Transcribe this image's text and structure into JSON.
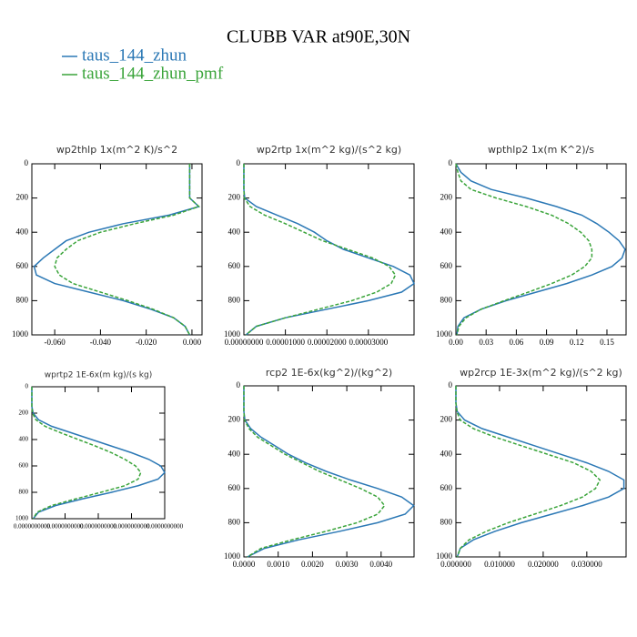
{
  "title": "CLUBB VAR at90E,30N",
  "chart_data": [
    {
      "type": "line",
      "title": "wp2thlp  1x(m^2 K)/s^2",
      "y": [
        0,
        50,
        100,
        150,
        200,
        250,
        300,
        350,
        400,
        450,
        500,
        550,
        600,
        650,
        700,
        750,
        800,
        850,
        900,
        950,
        1000
      ],
      "series": [
        {
          "name": "taus_144_zhun",
          "color": "#2b78b5",
          "linestyle": "solid",
          "values": [
            -0.001,
            -0.001,
            -0.001,
            -0.001,
            -0.001,
            0.003,
            -0.01,
            -0.03,
            -0.045,
            -0.055,
            -0.06,
            -0.065,
            -0.069,
            -0.068,
            -0.06,
            -0.045,
            -0.03,
            -0.018,
            -0.008,
            -0.003,
            -0.001
          ]
        },
        {
          "name": "taus_144_zhun_pmf",
          "color": "#3aa43a",
          "linestyle": "dashed",
          "values": [
            -0.001,
            -0.001,
            -0.001,
            -0.001,
            -0.001,
            0.003,
            -0.008,
            -0.025,
            -0.04,
            -0.05,
            -0.055,
            -0.059,
            -0.06,
            -0.058,
            -0.052,
            -0.04,
            -0.028,
            -0.017,
            -0.008,
            -0.003,
            -0.001
          ]
        }
      ],
      "xlim": [
        -0.07,
        0.0044
      ],
      "xticks": [
        {
          "value": -0.06,
          "label": "-0.060"
        },
        {
          "value": -0.04,
          "label": "-0.040"
        },
        {
          "value": -0.02,
          "label": "-0.020"
        },
        {
          "value": 0,
          "label": "0.000"
        }
      ],
      "ylim": [
        1000,
        0
      ],
      "yticks": [
        0,
        200,
        400,
        600,
        800,
        1000
      ]
    },
    {
      "type": "line",
      "title": "wp2rtp  1x(m^2 kg)/(s^2 kg)",
      "y": [
        0,
        50,
        100,
        150,
        200,
        250,
        300,
        350,
        400,
        450,
        500,
        550,
        600,
        650,
        700,
        750,
        800,
        850,
        900,
        950,
        1000
      ],
      "series": [
        {
          "name": "taus_144_zhun",
          "color": "#2b78b5",
          "linestyle": "solid",
          "values": [
            0,
            0,
            0,
            0,
            2e-07,
            3e-06,
            8e-06,
            1.3e-05,
            1.7e-05,
            2e-05,
            2.4e-05,
            3e-05,
            3.6e-05,
            4e-05,
            4.1e-05,
            3.8e-05,
            3e-05,
            2e-05,
            1e-05,
            3e-06,
            5e-07
          ]
        },
        {
          "name": "taus_144_zhun_pmf",
          "color": "#3aa43a",
          "linestyle": "dashed",
          "values": [
            0,
            0,
            0,
            0,
            1e-07,
            1.5e-06,
            5e-06,
            1e-05,
            1.45e-05,
            1.9e-05,
            2.5e-05,
            3.1e-05,
            3.5e-05,
            3.65e-05,
            3.55e-05,
            3.2e-05,
            2.6e-05,
            1.8e-05,
            1e-05,
            3e-06,
            5e-07
          ]
        }
      ],
      "xlim": [
        0,
        4.1e-05
      ],
      "xticks": [
        {
          "value": 0,
          "label": "0.00000000"
        },
        {
          "value": 1e-05,
          "label": "0.00001000"
        },
        {
          "value": 2e-05,
          "label": "0.00002000"
        },
        {
          "value": 3e-05,
          "label": "0.00003000"
        }
      ],
      "ylim": [
        1000,
        0
      ],
      "yticks": [
        0,
        200,
        400,
        600,
        800,
        1000
      ]
    },
    {
      "type": "line",
      "title": "wpthlp2  1x(m K^2)/s",
      "y": [
        0,
        50,
        100,
        150,
        200,
        250,
        300,
        350,
        400,
        450,
        500,
        550,
        600,
        650,
        700,
        750,
        800,
        850,
        900,
        950,
        1000
      ],
      "series": [
        {
          "name": "taus_144_zhun",
          "color": "#2b78b5",
          "linestyle": "solid",
          "values": [
            0,
            0.005,
            0.015,
            0.035,
            0.07,
            0.1,
            0.125,
            0.14,
            0.152,
            0.162,
            0.168,
            0.165,
            0.155,
            0.135,
            0.11,
            0.08,
            0.05,
            0.025,
            0.008,
            0.002,
            0.001
          ]
        },
        {
          "name": "taus_144_zhun_pmf",
          "color": "#3aa43a",
          "linestyle": "dashed",
          "values": [
            0,
            0.002,
            0.005,
            0.015,
            0.04,
            0.07,
            0.095,
            0.112,
            0.124,
            0.132,
            0.135,
            0.135,
            0.128,
            0.115,
            0.095,
            0.072,
            0.048,
            0.025,
            0.01,
            0.003,
            0.001
          ]
        }
      ],
      "xlim": [
        0,
        0.169
      ],
      "xticks": [
        {
          "value": 0,
          "label": "0.00"
        },
        0.03,
        0.06,
        0.09,
        0.12,
        0.15
      ],
      "ylim": [
        1000,
        0
      ],
      "yticks": [
        0,
        200,
        400,
        600,
        800,
        1000
      ]
    },
    {
      "type": "line",
      "title": "wprtp2  1E-6x(m kg)/(s kg)",
      "y": [
        0,
        50,
        100,
        150,
        200,
        250,
        300,
        350,
        400,
        450,
        500,
        550,
        600,
        650,
        700,
        750,
        800,
        850,
        900,
        950,
        1000
      ],
      "series": [
        {
          "name": "taus_144_zhun",
          "color": "#2b78b5",
          "linestyle": "solid",
          "values": [
            0,
            0,
            0,
            0,
            0.01,
            0.05,
            0.15,
            0.3,
            0.45,
            0.6,
            0.75,
            0.88,
            0.97,
            1.0,
            0.95,
            0.8,
            0.6,
            0.38,
            0.18,
            0.05,
            0.01
          ]
        },
        {
          "name": "taus_144_zhun_pmf",
          "color": "#3aa43a",
          "linestyle": "dashed",
          "values": [
            0,
            0,
            0,
            0,
            0.005,
            0.03,
            0.1,
            0.22,
            0.35,
            0.48,
            0.6,
            0.7,
            0.78,
            0.82,
            0.8,
            0.7,
            0.52,
            0.33,
            0.15,
            0.04,
            0.01
          ]
        }
      ],
      "xlim": [
        0,
        1
      ],
      "xticks": [
        {
          "value": 0,
          "label": "0.0000000000"
        },
        {
          "value": 0.25,
          "label": "0.0000000000"
        },
        {
          "value": 0.5,
          "label": "0.0000000000"
        },
        {
          "value": 0.75,
          "label": "0.0000000000"
        },
        {
          "value": 1,
          "label": "0.0000000000"
        }
      ],
      "ylim": [
        1000,
        0
      ],
      "yticks": [
        0,
        200,
        400,
        600,
        800,
        1000
      ]
    },
    {
      "type": "line",
      "title": "rcp2  1E-6x(kg^2)/(kg^2)",
      "y": [
        0,
        50,
        100,
        150,
        200,
        250,
        300,
        350,
        400,
        450,
        500,
        550,
        600,
        650,
        700,
        750,
        800,
        850,
        900,
        950,
        1000
      ],
      "series": [
        {
          "name": "taus_144_zhun",
          "color": "#2b78b5",
          "linestyle": "solid",
          "values": [
            0,
            0,
            0,
            0,
            3e-05,
            0.0002,
            0.0005,
            0.0009,
            0.0013,
            0.0018,
            0.0024,
            0.0031,
            0.0039,
            0.0046,
            0.00495,
            0.0047,
            0.0039,
            0.0028,
            0.0016,
            0.0006,
            0.0001
          ]
        },
        {
          "name": "taus_144_zhun_pmf",
          "color": "#3aa43a",
          "linestyle": "dashed",
          "values": [
            0,
            0,
            0,
            0,
            2e-05,
            0.00015,
            0.0004,
            0.0008,
            0.0012,
            0.0017,
            0.0022,
            0.0028,
            0.0034,
            0.0039,
            0.0041,
            0.0039,
            0.0033,
            0.0024,
            0.0014,
            0.0005,
            0.0001
          ]
        }
      ],
      "xlim": [
        0,
        0.00496
      ],
      "xticks": [
        {
          "value": 0,
          "label": "0.0000"
        },
        {
          "value": 0.001,
          "label": "0.0010"
        },
        {
          "value": 0.002,
          "label": "0.0020"
        },
        {
          "value": 0.003,
          "label": "0.0030"
        },
        {
          "value": 0.004,
          "label": "0.0040"
        }
      ],
      "ylim": [
        1000,
        0
      ],
      "yticks": [
        0,
        200,
        400,
        600,
        800,
        1000
      ]
    },
    {
      "type": "line",
      "title": "wp2rcp  1E-3x(m^2 kg)/(s^2 kg)",
      "y": [
        0,
        50,
        100,
        150,
        200,
        250,
        300,
        350,
        400,
        450,
        500,
        550,
        600,
        650,
        700,
        750,
        800,
        850,
        900,
        950,
        1000
      ],
      "series": [
        {
          "name": "taus_144_zhun",
          "color": "#2b78b5",
          "linestyle": "solid",
          "values": [
            0,
            0,
            0,
            0.0003,
            0.002,
            0.006,
            0.012,
            0.018,
            0.024,
            0.03,
            0.035,
            0.0385,
            0.0385,
            0.035,
            0.029,
            0.022,
            0.015,
            0.009,
            0.004,
            0.001,
            0.0003
          ]
        },
        {
          "name": "taus_144_zhun_pmf",
          "color": "#3aa43a",
          "linestyle": "dashed",
          "values": [
            0,
            0,
            0,
            0.0002,
            0.001,
            0.004,
            0.009,
            0.015,
            0.021,
            0.027,
            0.031,
            0.033,
            0.032,
            0.029,
            0.024,
            0.018,
            0.012,
            0.007,
            0.003,
            0.001,
            0.0003
          ]
        }
      ],
      "xlim": [
        0,
        0.039
      ],
      "xticks": [
        {
          "value": 0,
          "label": "0.000000"
        },
        {
          "value": 0.01,
          "label": "0.010000"
        },
        {
          "value": 0.02,
          "label": "0.020000"
        },
        {
          "value": 0.03,
          "label": "0.030000"
        }
      ],
      "ylim": [
        1000,
        0
      ],
      "yticks": [
        0,
        200,
        400,
        600,
        800,
        1000
      ]
    }
  ]
}
